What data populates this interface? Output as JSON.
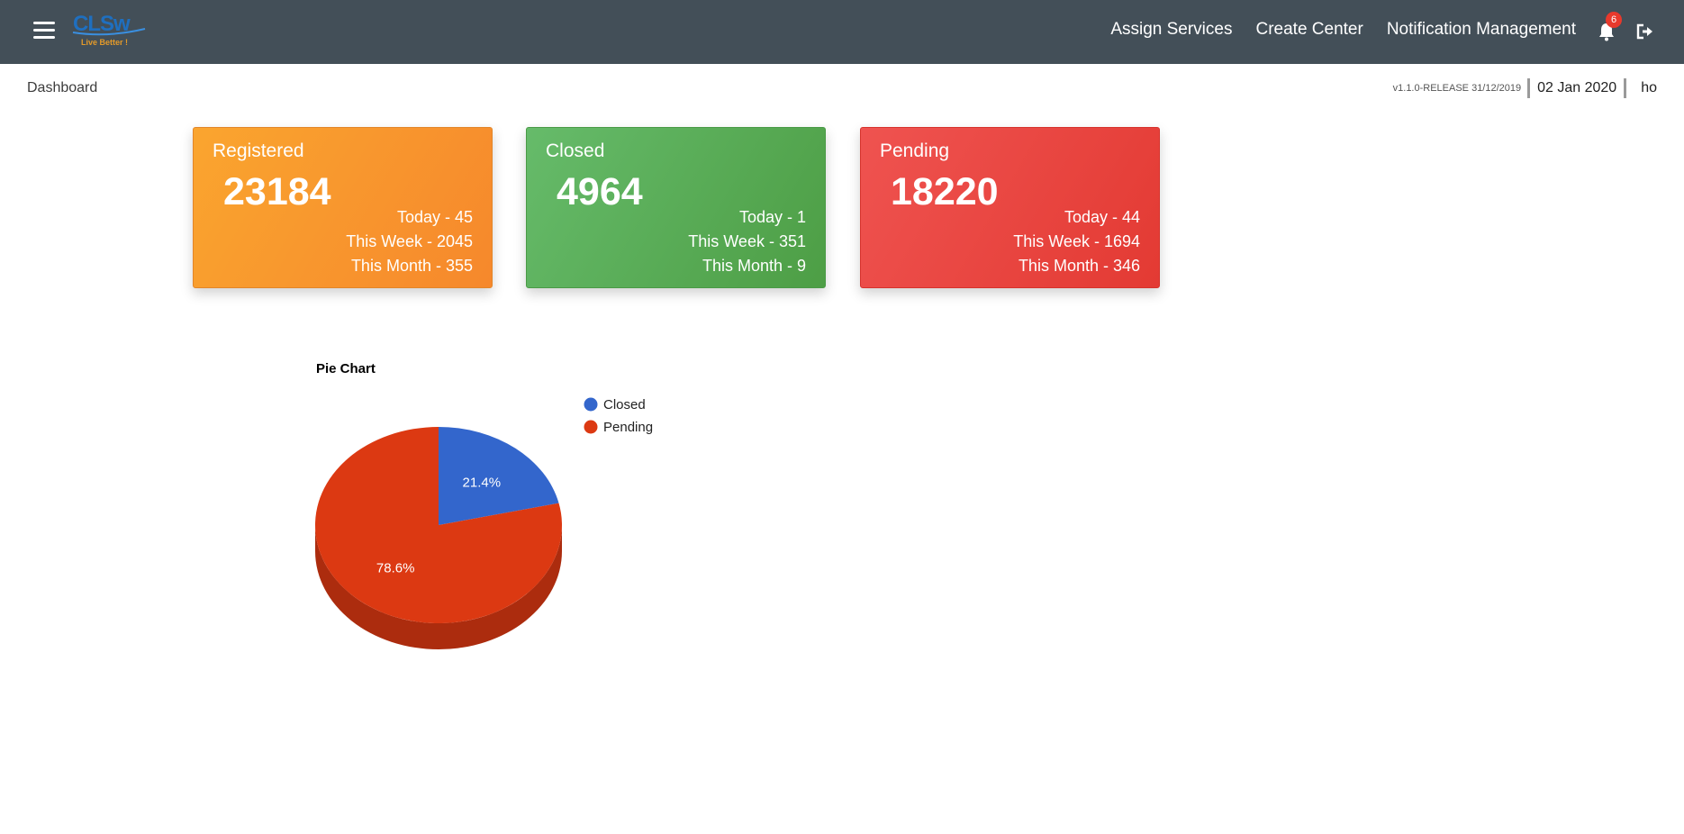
{
  "header": {
    "logo_tagline": "Live Better !",
    "nav": [
      {
        "label": "Assign Services"
      },
      {
        "label": "Create Center"
      },
      {
        "label": "Notification Management"
      }
    ],
    "notification_count": "6",
    "icons": [
      "menu-icon",
      "bell-icon",
      "logout-icon"
    ]
  },
  "subbar": {
    "breadcrumb": "Dashboard",
    "version": "v1.1.0-RELEASE 31/12/2019",
    "date": "02 Jan 2020",
    "user": "ho"
  },
  "cards": [
    {
      "label": "Registered",
      "count": "23184",
      "today": "Today - 45",
      "week": "This Week - 2045",
      "month": "This Month - 355",
      "color": "#f7962d"
    },
    {
      "label": "Closed",
      "count": "4964",
      "today": "Today - 1",
      "week": "This Week - 351",
      "month": "This Month - 9",
      "color": "#56ab50"
    },
    {
      "label": "Pending",
      "count": "18220",
      "today": "Today - 44",
      "week": "This Week - 1694",
      "month": "This Month - 346",
      "color": "#e8453e"
    }
  ],
  "chart_data": {
    "type": "pie",
    "title": "Pie Chart",
    "categories": [
      "Closed",
      "Pending"
    ],
    "values": [
      4964,
      18220
    ],
    "labels": [
      "21.4%",
      "78.6%"
    ],
    "colors": [
      "#3366cc",
      "#dc3912"
    ],
    "legend": "right",
    "three_d": true
  }
}
